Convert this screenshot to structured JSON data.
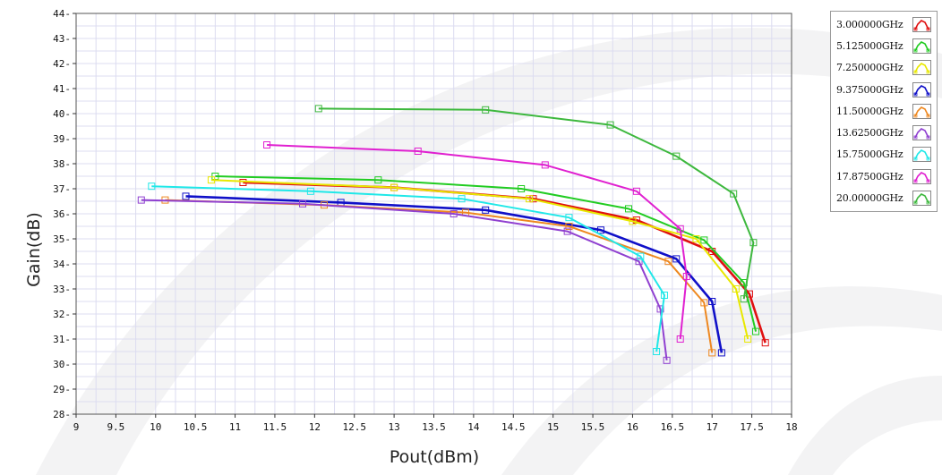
{
  "chart_data": {
    "type": "line",
    "xlabel": "Pout(dBm)",
    "ylabel": "Gain(dB)",
    "xlim": [
      9,
      18
    ],
    "ylim": [
      28,
      44
    ],
    "x_ticks": [
      "9",
      "9.5",
      "10",
      "10.5",
      "11",
      "11.5",
      "12",
      "12.5",
      "13",
      "13.5",
      "14",
      "14.5",
      "15",
      "15.5",
      "16",
      "16.5",
      "17",
      "17.5",
      "18"
    ],
    "y_ticks": [
      "28",
      "29",
      "30",
      "31",
      "32",
      "33",
      "34",
      "35",
      "36",
      "37",
      "38",
      "39",
      "40",
      "41",
      "42",
      "43",
      "44"
    ],
    "grid": true,
    "legend_position": "right",
    "series": [
      {
        "name": "3.000000GHz",
        "color": "#e01010",
        "points": [
          [
            11.1,
            37.25
          ],
          [
            13.0,
            37.05
          ],
          [
            14.75,
            36.6
          ],
          [
            16.05,
            35.75
          ],
          [
            17.0,
            34.5
          ],
          [
            17.47,
            32.8
          ],
          [
            17.67,
            30.85
          ]
        ]
      },
      {
        "name": "5.125000GHz",
        "color": "#22cc22",
        "points": [
          [
            10.75,
            37.5
          ],
          [
            12.8,
            37.35
          ],
          [
            14.6,
            37.0
          ],
          [
            15.95,
            36.2
          ],
          [
            16.9,
            34.95
          ],
          [
            17.4,
            33.25
          ],
          [
            17.55,
            31.3
          ]
        ]
      },
      {
        "name": "7.250000GHz",
        "color": "#e8e800",
        "points": [
          [
            10.7,
            37.35
          ],
          [
            13.0,
            37.05
          ],
          [
            14.7,
            36.6
          ],
          [
            16.0,
            35.7
          ],
          [
            16.8,
            35.0
          ],
          [
            17.3,
            33.0
          ],
          [
            17.45,
            31.0
          ]
        ]
      },
      {
        "name": "9.375000GHz",
        "color": "#1010c8",
        "points": [
          [
            10.38,
            36.7
          ],
          [
            12.33,
            36.45
          ],
          [
            14.15,
            36.15
          ],
          [
            15.6,
            35.35
          ],
          [
            16.55,
            34.2
          ],
          [
            17.0,
            32.5
          ],
          [
            17.12,
            30.45
          ]
        ]
      },
      {
        "name": "11.50000GHz",
        "color": "#ee8820",
        "points": [
          [
            10.12,
            36.55
          ],
          [
            12.12,
            36.35
          ],
          [
            13.9,
            36.05
          ],
          [
            15.2,
            35.5
          ],
          [
            16.45,
            34.1
          ],
          [
            16.9,
            32.45
          ],
          [
            17.0,
            30.45
          ]
        ]
      },
      {
        "name": "13.62500GHz",
        "color": "#9040d0",
        "points": [
          [
            9.82,
            36.55
          ],
          [
            11.85,
            36.4
          ],
          [
            13.75,
            36.0
          ],
          [
            15.18,
            35.3
          ],
          [
            16.08,
            34.1
          ],
          [
            16.35,
            32.2
          ],
          [
            16.43,
            30.15
          ]
        ]
      },
      {
        "name": "15.75000GHz",
        "color": "#20e8e8",
        "points": [
          [
            9.95,
            37.1
          ],
          [
            11.95,
            36.9
          ],
          [
            13.85,
            36.6
          ],
          [
            15.2,
            35.85
          ],
          [
            16.1,
            34.3
          ],
          [
            16.4,
            32.75
          ],
          [
            16.3,
            30.5
          ]
        ]
      },
      {
        "name": "17.87500GHz",
        "color": "#e020d0",
        "points": [
          [
            11.4,
            38.75
          ],
          [
            13.3,
            38.5
          ],
          [
            14.9,
            37.95
          ],
          [
            16.05,
            36.9
          ],
          [
            16.6,
            35.4
          ],
          [
            16.68,
            33.5
          ],
          [
            16.6,
            31.0
          ]
        ]
      },
      {
        "name": "20.00000GHz",
        "color": "#3db83d",
        "points": [
          [
            12.05,
            40.2
          ],
          [
            14.15,
            40.15
          ],
          [
            15.72,
            39.55
          ],
          [
            16.55,
            38.3
          ],
          [
            17.27,
            36.8
          ],
          [
            17.52,
            34.85
          ],
          [
            17.4,
            32.6
          ]
        ]
      }
    ]
  }
}
